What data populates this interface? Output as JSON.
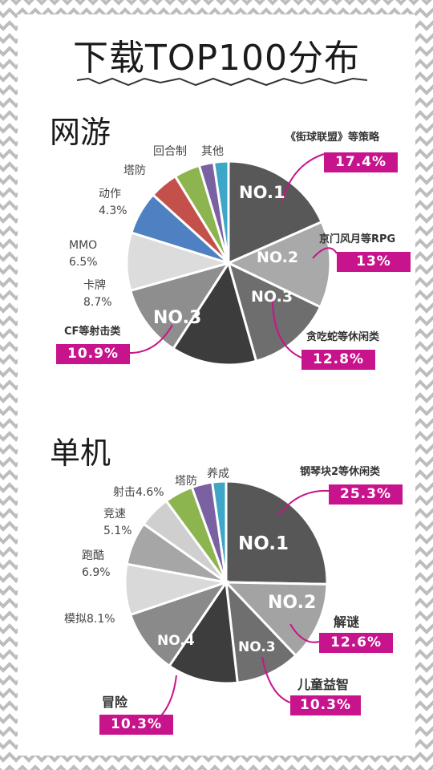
{
  "title": "下载TOP100分布",
  "sections": {
    "online": {
      "heading": "网游",
      "rank_labels": [
        "NO.1",
        "NO.2",
        "NO.3",
        "NO.3"
      ],
      "callouts": {
        "strategy": {
          "name": "《街球联盟》等策略",
          "value": "17.4%"
        },
        "rpg": {
          "name": "京门风月等RPG",
          "value": "13%"
        },
        "casual": {
          "name": "贪吃蛇等休闲类",
          "value": "12.8%"
        },
        "shooter": {
          "name": "CF等射击类",
          "value": "10.9%"
        }
      },
      "labels": {
        "card_name": "卡牌",
        "card_value": "8.7%",
        "mmo_name": "MMO",
        "mmo_value": "6.5%",
        "action_name": "动作",
        "action_value": "4.3%",
        "td_name": "塔防",
        "turn_name": "回合制",
        "other_name": "其他"
      }
    },
    "single": {
      "heading": "单机",
      "rank_labels": [
        "NO.1",
        "NO.2",
        "NO.3",
        "NO.4"
      ],
      "callouts": {
        "casual": {
          "name": "钢琴块2等休闲类",
          "value": "25.3%"
        },
        "puzzle": {
          "name": "解谜",
          "value": "12.6%"
        },
        "kids": {
          "name": "儿童益智",
          "value": "10.3%"
        },
        "adventure": {
          "name": "冒险",
          "value": "10.3%"
        }
      },
      "labels": {
        "sim": "模拟8.1%",
        "parkour_name": "跑酷",
        "parkour_value": "6.9%",
        "racing_name": "竞速",
        "racing_value": "5.1%",
        "shooting": "射击4.6%",
        "td_name": "塔防",
        "raise_name": "养成"
      }
    }
  },
  "chart_data": [
    {
      "type": "pie",
      "title": "网游",
      "categories": [
        "《街球联盟》等策略",
        "京门风月等RPG",
        "贪吃蛇等休闲类",
        "",
        "CF等射击类",
        "卡牌",
        "MMO",
        "动作",
        "塔防",
        "回合制",
        "其他"
      ],
      "values": [
        17.4,
        13,
        12.8,
        12.8,
        10.9,
        8.7,
        6.5,
        4.3,
        3.9,
        2.2,
        2.2
      ],
      "colors": [
        "#585858",
        "#a9a9a9",
        "#6e6e6e",
        "#3c3c3c",
        "#8e8e8e",
        "#dcdcdc",
        "#4e80c2",
        "#c4504b",
        "#8db54f",
        "#7a62a2",
        "#3ea7c8",
        "#f28c38"
      ],
      "colors_note": "",
      "values_note": ""
    },
    {
      "type": "pie",
      "title": "单机",
      "categories": [
        "钢琴块2等休闲类",
        "解谜",
        "儿童益智",
        "",
        "冒险",
        "模拟",
        "跑酷",
        "竞速",
        "射击",
        "塔防",
        "养成"
      ],
      "values": [
        25.3,
        12.6,
        10.3,
        11.3,
        10.3,
        8.1,
        6.9,
        5.1,
        4.6,
        3.3,
        2.2
      ],
      "colors": [
        "#575757",
        "#a3a3a3",
        "#6f6f6f",
        "#3d3d3d",
        "#8a8a8a",
        "#d9d9d9",
        "#a6a6a6",
        "#cfcfcf",
        "#8db54f",
        "#7a62a2",
        "#3ea7c8",
        "#f28c38"
      ]
    }
  ]
}
